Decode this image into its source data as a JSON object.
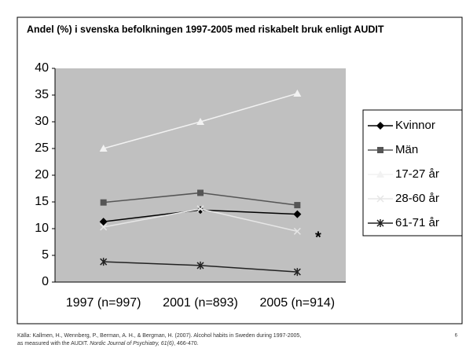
{
  "chart_data": {
    "type": "line",
    "title": "Andel (%) i svenska befolkningen 1997-2005 med riskabelt bruk enligt AUDIT",
    "categories": [
      "1997 (n=997)",
      "2001 (n=893)",
      "2005 (n=914)"
    ],
    "series": [
      {
        "name": "Kvinnor",
        "color": "#000000",
        "marker": "diamond",
        "values": [
          11.3,
          13.5,
          12.7
        ]
      },
      {
        "name": "Män",
        "color": "#555555",
        "marker": "square",
        "values": [
          14.9,
          16.7,
          14.4
        ]
      },
      {
        "name": "17-27 år",
        "color": "#f2f2f2",
        "marker": "triangle",
        "values": [
          25,
          30,
          35.3
        ]
      },
      {
        "name": "28-60 år",
        "color": "#e6e6e6",
        "marker": "x",
        "values": [
          10.3,
          13.7,
          9.5
        ]
      },
      {
        "name": "61-71 år",
        "color": "#222222",
        "marker": "star",
        "values": [
          3.8,
          3.1,
          1.9
        ]
      }
    ],
    "ylim": [
      0,
      40
    ],
    "yticks": [
      0,
      5,
      10,
      15,
      20,
      25,
      30,
      35,
      40
    ],
    "grid": false,
    "legend": "right",
    "annotation": "*",
    "footer": {
      "line1": "Källa: Kallmen, H., Wennberg, P., Berman, A. H., & Bergman, H. (2007). Alcohol habits in Sweden during 1997-2005,",
      "line2_pre": "as measured with the AUDIT. ",
      "line2_italic": "Nordic Journal of Psychiatry, 61(6)",
      "line2_post": ", 466-470."
    },
    "page_number": "6"
  }
}
